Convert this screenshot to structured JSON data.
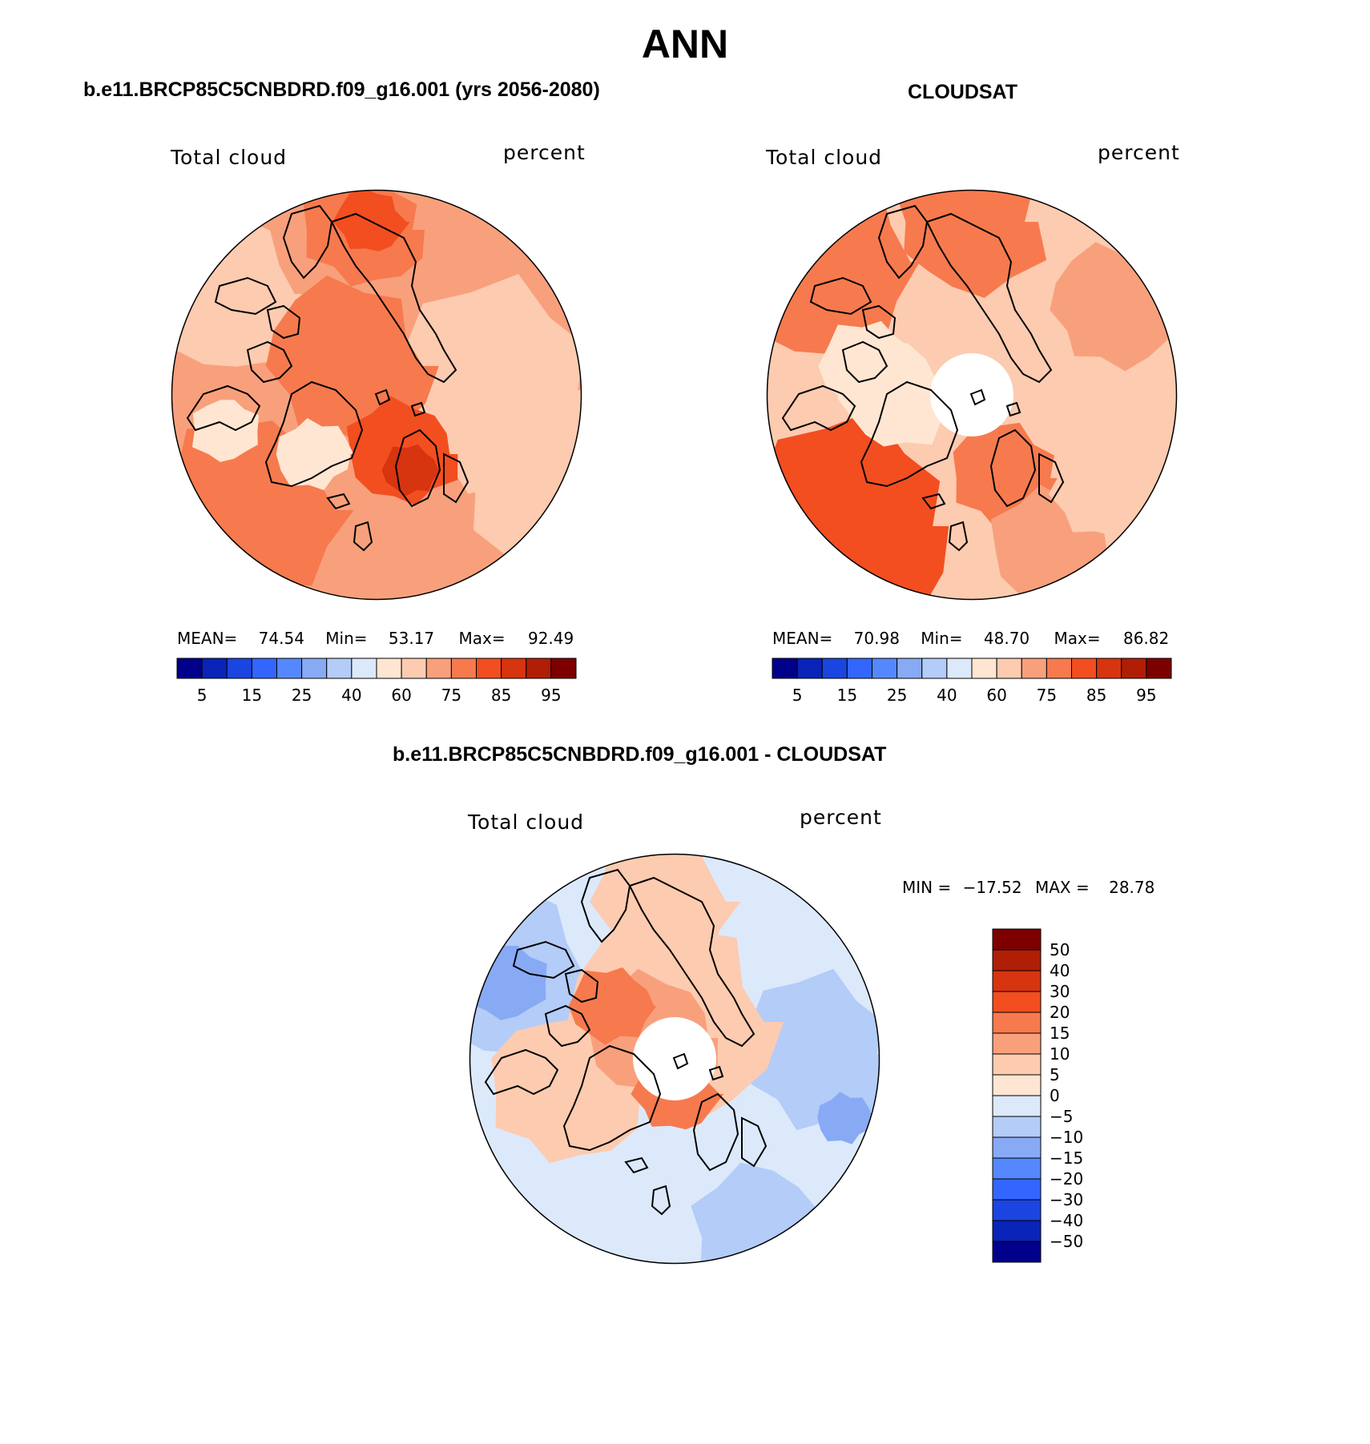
{
  "title": "ANN",
  "panels": [
    {
      "title": "b.e11.BRCP85C5CNBDRD.f09_g16.001 (yrs 2056-2080)",
      "variable": "Total cloud",
      "units": "percent",
      "stats": {
        "mean_label": "MEAN=",
        "mean": "74.54",
        "min_label": "Min=",
        "min": "53.17",
        "max_label": "Max=",
        "max": "92.49"
      },
      "colorbar_ticks": [
        "5",
        "15",
        "25",
        "40",
        "60",
        "75",
        "85",
        "95"
      ]
    },
    {
      "title": "CLOUDSAT",
      "variable": "Total cloud",
      "units": "percent",
      "stats": {
        "mean_label": "MEAN=",
        "mean": "70.98",
        "min_label": "Min=",
        "min": "48.70",
        "max_label": "Max=",
        "max": "86.82"
      },
      "colorbar_ticks": [
        "5",
        "15",
        "25",
        "40",
        "60",
        "75",
        "85",
        "95"
      ]
    }
  ],
  "diff_panel": {
    "title": "b.e11.BRCP85C5CNBDRD.f09_g16.001 - CLOUDSAT",
    "variable": "Total cloud",
    "units": "percent",
    "stats": {
      "min_label": "MIN =",
      "min": "−17.52",
      "max_label": "MAX =",
      "max": "28.78"
    },
    "colorbar_ticks": [
      "50",
      "40",
      "30",
      "20",
      "15",
      "10",
      "5",
      "0",
      "−5",
      "−10",
      "−15",
      "−20",
      "−30",
      "−40",
      "−50"
    ]
  },
  "colors": {
    "abs_scale": [
      "#00008a",
      "#0a23b8",
      "#1a45e0",
      "#3366ff",
      "#5588ff",
      "#88aaf5",
      "#b3ccf8",
      "#dce9fb",
      "#ffe6d2",
      "#fccbb0",
      "#f8a07c",
      "#f67a4e",
      "#f24e20",
      "#d73410",
      "#b01e06",
      "#7d0000"
    ],
    "diff_scale": [
      "#7d0000",
      "#b01e06",
      "#d73410",
      "#f24e20",
      "#f67a4e",
      "#f8a07c",
      "#fccbb0",
      "#ffe6d2",
      "#dce9fb",
      "#b3ccf8",
      "#88aaf5",
      "#5588ff",
      "#3366ff",
      "#1a45e0",
      "#0a23b8",
      "#00008a"
    ],
    "coastline": "#000000"
  }
}
